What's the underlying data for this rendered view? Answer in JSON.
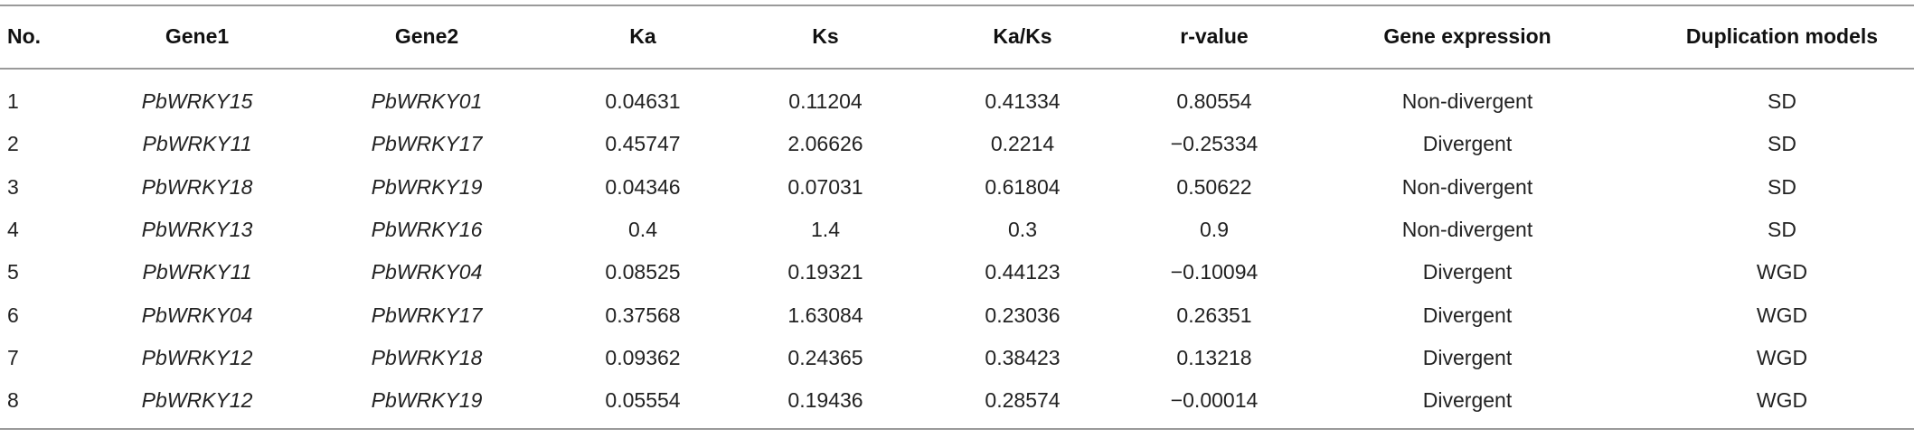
{
  "table": {
    "header": [
      "No.",
      "Gene1",
      "Gene2",
      "Ka",
      "Ks",
      "Ka/Ks",
      "r-value",
      "Gene expression",
      "Duplication models"
    ],
    "rows": [
      [
        "1",
        "PbWRKY15",
        "PbWRKY01",
        "0.04631",
        "0.11204",
        "0.41334",
        "0.80554",
        "Non-divergent",
        "SD"
      ],
      [
        "2",
        "PbWRKY11",
        "PbWRKY17",
        "0.45747",
        "2.06626",
        "0.2214",
        "−0.25334",
        "Divergent",
        "SD"
      ],
      [
        "3",
        "PbWRKY18",
        "PbWRKY19",
        "0.04346",
        "0.07031",
        "0.61804",
        "0.50622",
        "Non-divergent",
        "SD"
      ],
      [
        "4",
        "PbWRKY13",
        "PbWRKY16",
        "0.4",
        "1.4",
        "0.3",
        "0.9",
        "Non-divergent",
        "SD"
      ],
      [
        "5",
        "PbWRKY11",
        "PbWRKY04",
        "0.08525",
        "0.19321",
        "0.44123",
        "−0.10094",
        "Divergent",
        "WGD"
      ],
      [
        "6",
        "PbWRKY04",
        "PbWRKY17",
        "0.37568",
        "1.63084",
        "0.23036",
        "0.26351",
        "Divergent",
        "WGD"
      ],
      [
        "7",
        "PbWRKY12",
        "PbWRKY18",
        "0.09362",
        "0.24365",
        "0.38423",
        "0.13218",
        "Divergent",
        "WGD"
      ],
      [
        "8",
        "PbWRKY12",
        "PbWRKY19",
        "0.05554",
        "0.19436",
        "0.28574",
        "−0.00014",
        "Divergent",
        "WGD"
      ]
    ]
  }
}
